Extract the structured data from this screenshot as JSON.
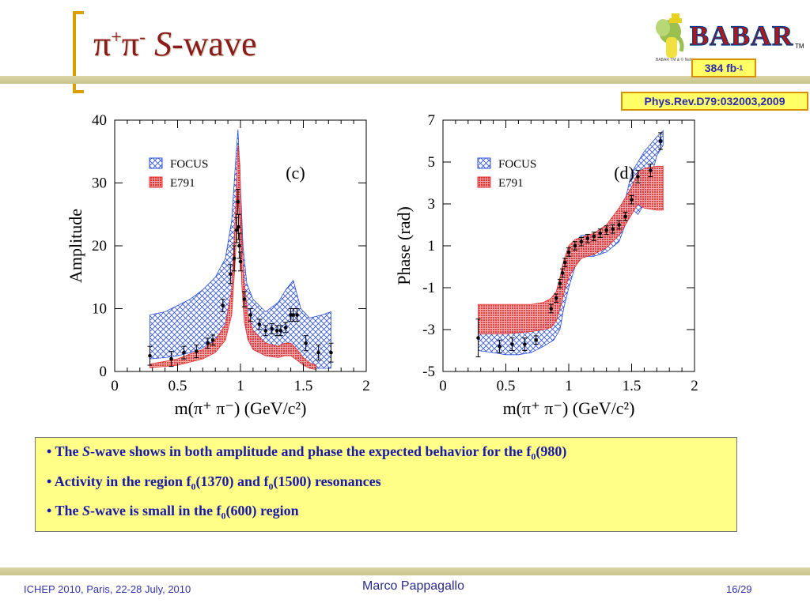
{
  "slide": {
    "title_prefix": "π",
    "title_sup1": "+",
    "title_mid": "π",
    "title_sup2": "-",
    "title_s": "S",
    "title_suffix": "-wave",
    "logo_text": "BABAR",
    "logo_tm": "TM",
    "logo_caption": "BABAR TM & © Nelvana",
    "luminosity": "384 fb",
    "luminosity_sup": "-1",
    "reference": "Phys.Rev.D79:032003,2009",
    "bullets": [
      {
        "pre": "• The ",
        "em": "S",
        "post": "-wave shows in both amplitude and phase the expected behavior for the f",
        "sub": "0",
        "tail": "(980)"
      },
      {
        "pre": "• Activity in the region f",
        "sub": "0",
        "mid": "(1370) and f",
        "sub2": "0",
        "tail": "(1500) resonances"
      },
      {
        "pre": "• The ",
        "em": "S",
        "post": "-wave is small in the f",
        "sub": "0",
        "tail": "(600) region"
      }
    ],
    "footer_left": "ICHEP 2010, Paris, 22-28 July, 2010",
    "footer_center": "Marco Pappagallo",
    "footer_right": "16/29"
  },
  "colors": {
    "title": "#8b1a1a",
    "bracket": "#d8a000",
    "focus_band": "#2b4fd8",
    "e791_band": "#e03030",
    "notes_bg": "#ffff88",
    "notes_text": "#1a1aa8"
  },
  "chart_data": [
    {
      "type": "line",
      "panel_label": "(c)",
      "xlabel": "m(π⁺ π⁻) (GeV/c²)",
      "ylabel": "Amplitude",
      "xlim": [
        0,
        2
      ],
      "ylim": [
        0,
        40
      ],
      "xticks": [
        "0",
        "0.5",
        "1",
        "1.5",
        "2"
      ],
      "yticks": [
        "0",
        "10",
        "20",
        "30",
        "40"
      ],
      "legend": [
        "FOCUS",
        "E791"
      ],
      "legend_placement": "top-left",
      "series": [
        {
          "name": "FOCUS",
          "style": "hatched-band",
          "x": [
            0.28,
            0.4,
            0.5,
            0.6,
            0.7,
            0.8,
            0.88,
            0.93,
            0.96,
            0.98,
            0.995,
            1.02,
            1.05,
            1.1,
            1.2,
            1.3,
            1.36,
            1.42,
            1.48,
            1.55,
            1.65,
            1.72
          ],
          "upper": [
            9,
            9.5,
            10.5,
            11.5,
            13,
            15,
            18,
            24,
            33,
            38.5,
            32,
            20,
            14,
            11.5,
            9.5,
            11,
            13,
            14.5,
            10,
            8.5,
            9,
            9.5
          ],
          "lower": [
            2,
            2.2,
            2.5,
            3,
            3.8,
            5,
            7,
            12,
            22,
            30,
            25,
            12,
            6,
            3.5,
            2.5,
            2.5,
            3,
            3.5,
            1.5,
            0.5,
            0.5,
            0.5
          ]
        },
        {
          "name": "E791",
          "style": "solid-band",
          "x": [
            0.28,
            0.4,
            0.5,
            0.6,
            0.7,
            0.8,
            0.88,
            0.93,
            0.96,
            0.98,
            0.995,
            1.01,
            1.03,
            1.06,
            1.1,
            1.2,
            1.3,
            1.35,
            1.4,
            1.45,
            1.5,
            1.55,
            1.6
          ],
          "upper": [
            1.2,
            1.6,
            2,
            2.8,
            3.5,
            5,
            7.5,
            13,
            25,
            36,
            33,
            22,
            14,
            9,
            6.5,
            4.5,
            4,
            4.5,
            4.5,
            3.5,
            2.2,
            1.4,
            1
          ],
          "lower": [
            0.6,
            0.8,
            1,
            1.5,
            2,
            3,
            5,
            9,
            18,
            28,
            24,
            14,
            8,
            5,
            3.5,
            2.5,
            2.2,
            2.5,
            2.5,
            1.8,
            1,
            0.5,
            0.3
          ]
        },
        {
          "name": "data",
          "style": "points",
          "x": [
            0.28,
            0.45,
            0.55,
            0.65,
            0.74,
            0.78,
            0.86,
            0.92,
            0.95,
            0.97,
            0.98,
            0.985,
            0.99,
            1.0,
            1.03,
            1.08,
            1.15,
            1.2,
            1.25,
            1.29,
            1.32,
            1.36,
            1.4,
            1.42,
            1.45,
            1.52,
            1.62,
            1.72
          ],
          "y": [
            2.5,
            2,
            3,
            3.2,
            4.5,
            5,
            10.5,
            15.5,
            18,
            22.5,
            27,
            23,
            20,
            17.5,
            11.5,
            9,
            7.5,
            6.5,
            6.8,
            6.5,
            6.5,
            7,
            9,
            9,
            9,
            4.5,
            3,
            3
          ],
          "err": [
            1.5,
            1.2,
            1,
            1,
            0.8,
            0.8,
            1,
            1.5,
            2,
            2,
            2,
            2,
            2,
            1.5,
            1.2,
            1,
            0.8,
            0.8,
            0.8,
            0.8,
            0.8,
            0.8,
            1,
            1,
            1,
            1.2,
            1.2,
            1.5
          ]
        }
      ]
    },
    {
      "type": "line",
      "panel_label": "(d)",
      "xlabel": "m(π⁺ π⁻) (GeV/c²)",
      "ylabel": "Phase (rad)",
      "xlim": [
        0,
        2
      ],
      "ylim": [
        -5,
        7
      ],
      "xticks": [
        "0",
        "0.5",
        "1",
        "1.5",
        "2"
      ],
      "yticks": [
        "-5",
        "-3",
        "-1",
        "1",
        "3",
        "5",
        "7"
      ],
      "legend": [
        "FOCUS",
        "E791"
      ],
      "legend_placement": "top-left",
      "series": [
        {
          "name": "FOCUS",
          "style": "hatched-band",
          "x": [
            0.28,
            0.4,
            0.5,
            0.6,
            0.7,
            0.8,
            0.88,
            0.93,
            0.96,
            1.0,
            1.05,
            1.1,
            1.2,
            1.3,
            1.4,
            1.45,
            1.5,
            1.55,
            1.6,
            1.7,
            1.75
          ],
          "upper": [
            -3.2,
            -3.2,
            -3.1,
            -3,
            -3,
            -2.8,
            -2.2,
            -1.2,
            -0.2,
            0.5,
            1.2,
            1.5,
            1.5,
            1.8,
            2.5,
            3.2,
            4.5,
            5,
            5.5,
            6.2,
            6.5
          ],
          "lower": [
            -4,
            -4.1,
            -4.2,
            -4.2,
            -4.1,
            -3.8,
            -3.5,
            -3,
            -2,
            -1,
            0,
            0.5,
            0.5,
            0.7,
            1.2,
            2,
            2.8,
            2.5,
            3,
            5.3,
            5.8
          ]
        },
        {
          "name": "E791",
          "style": "solid-band",
          "x": [
            0.28,
            0.5,
            0.7,
            0.8,
            0.86,
            0.9,
            0.93,
            0.96,
            1.0,
            1.05,
            1.1,
            1.2,
            1.3,
            1.4,
            1.5,
            1.55,
            1.6,
            1.7,
            1.75
          ],
          "upper": [
            -1.8,
            -1.8,
            -1.8,
            -1.7,
            -1.5,
            -1.2,
            -0.5,
            0.3,
            1,
            1.3,
            1.4,
            1.6,
            2,
            2.8,
            3.8,
            4.5,
            4.7,
            4.8,
            4.8
          ],
          "lower": [
            -3.2,
            -3.2,
            -3.1,
            -3,
            -2.9,
            -2.6,
            -2,
            -1.3,
            -0.5,
            0,
            0.4,
            0.6,
            0.9,
            1.5,
            2.5,
            3,
            2.8,
            2.7,
            2.7
          ]
        },
        {
          "name": "data",
          "style": "points",
          "x": [
            0.28,
            0.45,
            0.55,
            0.65,
            0.74,
            0.86,
            0.9,
            0.93,
            0.95,
            0.97,
            1.0,
            1.05,
            1.1,
            1.15,
            1.2,
            1.25,
            1.3,
            1.35,
            1.4,
            1.45,
            1.5,
            1.55,
            1.65,
            1.73
          ],
          "y": [
            -3.4,
            -3.8,
            -3.7,
            -3.7,
            -3.5,
            -2,
            -1.5,
            -0.8,
            -0.3,
            0.2,
            0.7,
            1,
            1.2,
            1.35,
            1.45,
            1.6,
            1.75,
            1.8,
            2,
            2.4,
            3.2,
            4.3,
            4.6,
            6
          ],
          "err": [
            0.9,
            0.3,
            0.3,
            0.3,
            0.2,
            0.2,
            0.2,
            0.2,
            0.2,
            0.2,
            0.2,
            0.2,
            0.2,
            0.2,
            0.2,
            0.2,
            0.2,
            0.2,
            0.2,
            0.2,
            0.2,
            0.3,
            0.3,
            0.4
          ]
        }
      ]
    }
  ]
}
